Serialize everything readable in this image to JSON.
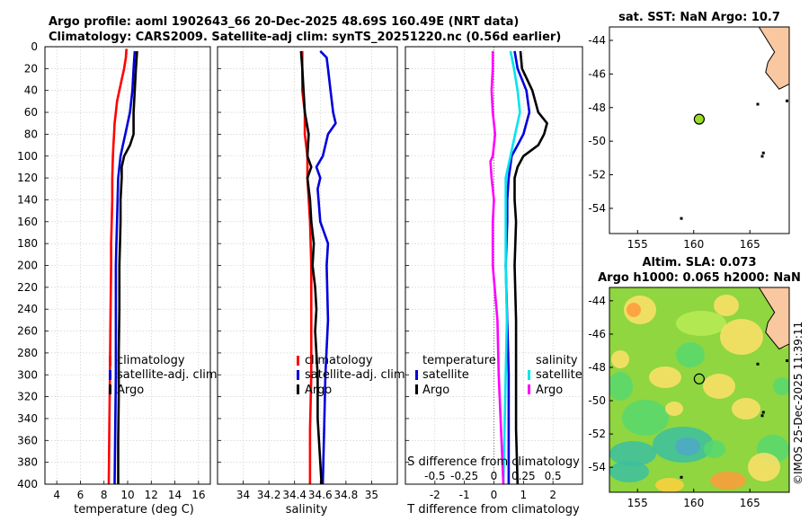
{
  "header": {
    "title_line1": "Argo profile: aoml 1902643_66 20-Dec-2025 48.69S 160.49E (NRT data)",
    "title_line2": "Climatology: CARS2009. Satellite-adj clim: synTS_20251220.nc (0.56d earlier)"
  },
  "colors": {
    "climatology": "#ff0000",
    "satellite": "#0000dd",
    "argo": "#000000",
    "sal_satellite": "#00e5ee",
    "sal_argo": "#ff00ff",
    "land": "#f9c8a0",
    "float_marker": "#99dd22"
  },
  "depth_ticks": [
    0,
    20,
    40,
    60,
    80,
    100,
    120,
    140,
    160,
    180,
    200,
    220,
    240,
    260,
    280,
    300,
    320,
    340,
    360,
    380,
    400
  ],
  "chart_data": [
    {
      "type": "line",
      "name": "temperature-profile",
      "xlabel": "temperature (deg C)",
      "ylabel": "depth",
      "xlim": [
        3,
        17
      ],
      "ylim": [
        0,
        400
      ],
      "xticks": [
        4,
        6,
        8,
        10,
        12,
        14,
        16
      ],
      "grid": true,
      "legend": [
        "climatology",
        "satellite-adj. clim",
        "Argo"
      ],
      "series": [
        {
          "name": "climatology",
          "color": "#ff0000",
          "depth": [
            2,
            10,
            20,
            30,
            40,
            50,
            60,
            70,
            80,
            90,
            100,
            120,
            140,
            160,
            180,
            200,
            250,
            300,
            350,
            400
          ],
          "values": [
            9.9,
            9.85,
            9.7,
            9.5,
            9.3,
            9.1,
            9.0,
            8.9,
            8.85,
            8.8,
            8.75,
            8.7,
            8.7,
            8.65,
            8.6,
            8.6,
            8.55,
            8.5,
            8.45,
            8.4
          ]
        },
        {
          "name": "satellite-adj. clim",
          "color": "#0000dd",
          "depth": [
            4,
            20,
            40,
            60,
            70,
            80,
            90,
            100,
            110,
            120,
            140,
            160,
            180,
            200,
            250,
            300,
            350,
            400
          ],
          "values": [
            10.6,
            10.5,
            10.4,
            10.2,
            10.0,
            9.8,
            9.6,
            9.4,
            9.3,
            9.2,
            9.15,
            9.1,
            9.05,
            9.0,
            9.0,
            9.0,
            8.95,
            8.9
          ],
          "extra_x": [
            10.2
          ]
        },
        {
          "name": "Argo",
          "color": "#000000",
          "depth": [
            4,
            20,
            40,
            60,
            80,
            90,
            100,
            110,
            120,
            140,
            160,
            180,
            200,
            240,
            280,
            320,
            360,
            400
          ],
          "values": [
            10.8,
            10.7,
            10.6,
            10.5,
            10.5,
            10.2,
            9.7,
            9.5,
            9.5,
            9.4,
            9.4,
            9.35,
            9.3,
            9.3,
            9.25,
            9.25,
            9.2,
            9.2
          ]
        }
      ]
    },
    {
      "type": "line",
      "name": "salinity-profile",
      "xlabel": "salinity",
      "ylabel": "depth",
      "xlim": [
        33.8,
        35.2
      ],
      "ylim": [
        0,
        400
      ],
      "xticks": [
        34,
        34.2,
        34.4,
        34.6,
        34.8,
        35
      ],
      "grid": true,
      "legend": [
        "climatology",
        "satellite-adj. clim",
        "Argo"
      ],
      "series": [
        {
          "name": "climatology",
          "color": "#ff0000",
          "depth": [
            4,
            40,
            60,
            80,
            100,
            120,
            160,
            200,
            250,
            300,
            350,
            400
          ],
          "values": [
            34.46,
            34.46,
            34.48,
            34.48,
            34.5,
            34.5,
            34.52,
            34.53,
            34.53,
            34.53,
            34.52,
            34.52
          ]
        },
        {
          "name": "satellite-adj. clim",
          "color": "#0000dd",
          "depth": [
            4,
            10,
            20,
            40,
            60,
            70,
            80,
            100,
            110,
            120,
            130,
            160,
            180,
            200,
            250,
            300,
            350,
            400
          ],
          "values": [
            34.6,
            34.65,
            34.66,
            34.68,
            34.7,
            34.72,
            34.66,
            34.62,
            34.57,
            34.6,
            34.58,
            34.6,
            34.66,
            34.65,
            34.66,
            34.64,
            34.63,
            34.62
          ]
        },
        {
          "name": "Argo",
          "color": "#000000",
          "depth": [
            4,
            20,
            40,
            60,
            80,
            100,
            110,
            120,
            140,
            160,
            180,
            200,
            220,
            240,
            260,
            280,
            300,
            340,
            380,
            400
          ],
          "values": [
            34.45,
            34.46,
            34.47,
            34.48,
            34.51,
            34.5,
            34.53,
            34.5,
            34.52,
            34.53,
            34.55,
            34.54,
            34.56,
            34.57,
            34.56,
            34.57,
            34.58,
            34.58,
            34.6,
            34.61
          ]
        }
      ]
    },
    {
      "type": "line",
      "name": "difference-from-climatology",
      "xlabel": "T difference from climatology",
      "top_xlabel": "S difference from climatology",
      "ylabel": "depth",
      "xlim": [
        -3,
        3
      ],
      "ylim": [
        0,
        400
      ],
      "xticks": [
        -2,
        -1,
        0,
        1,
        2
      ],
      "top_xlim": [
        -0.75,
        0.75
      ],
      "top_xticks": [
        -0.5,
        -0.25,
        0,
        0.25,
        0.5
      ],
      "grid": true,
      "legend_temperature": {
        "title": "temperature",
        "items": [
          "satellite",
          "Argo"
        ]
      },
      "legend_salinity": {
        "title": "salinity",
        "items": [
          "satellite",
          "Argo"
        ]
      },
      "series": [
        {
          "name": "temperature satellite",
          "axis": "T",
          "color": "#0000dd",
          "depth": [
            4,
            20,
            40,
            60,
            70,
            80,
            90,
            100,
            110,
            120,
            140,
            160,
            200,
            250,
            300,
            350,
            400
          ],
          "values": [
            0.7,
            0.8,
            1.1,
            1.2,
            1.1,
            1.0,
            0.8,
            0.6,
            0.55,
            0.5,
            0.45,
            0.45,
            0.4,
            0.45,
            0.5,
            0.5,
            0.5
          ]
        },
        {
          "name": "temperature Argo",
          "axis": "T",
          "color": "#000000",
          "depth": [
            4,
            20,
            40,
            60,
            70,
            80,
            90,
            100,
            110,
            120,
            140,
            160,
            200,
            250,
            300,
            350,
            400
          ],
          "values": [
            0.9,
            0.95,
            1.3,
            1.5,
            1.8,
            1.7,
            1.5,
            1.0,
            0.8,
            0.7,
            0.7,
            0.75,
            0.7,
            0.75,
            0.75,
            0.75,
            0.8
          ]
        },
        {
          "name": "salinity satellite",
          "axis": "S",
          "color": "#00e5ee",
          "depth": [
            4,
            20,
            40,
            60,
            80,
            100,
            120,
            160,
            200,
            250,
            300,
            350,
            400
          ],
          "values": [
            0.14,
            0.17,
            0.2,
            0.22,
            0.18,
            0.14,
            0.1,
            0.1,
            0.1,
            0.11,
            0.1,
            0.09,
            0.08
          ]
        },
        {
          "name": "salinity Argo",
          "axis": "S",
          "color": "#ff00ff",
          "depth": [
            4,
            20,
            40,
            60,
            80,
            100,
            105,
            120,
            140,
            160,
            200,
            250,
            300,
            350,
            400
          ],
          "values": [
            -0.01,
            -0.01,
            -0.02,
            -0.01,
            0.01,
            -0.01,
            -0.03,
            -0.02,
            0.0,
            -0.01,
            -0.01,
            0.03,
            0.04,
            0.06,
            0.08
          ]
        }
      ]
    },
    {
      "type": "map",
      "name": "sst-map",
      "title": "sat. SST: NaN Argo: 10.7",
      "lon_range": [
        152.5,
        168.5
      ],
      "lat_range": [
        -55.5,
        -43.2
      ],
      "lon_ticks": [
        155,
        160,
        165
      ],
      "lat_ticks": [
        -44,
        -46,
        -48,
        -50,
        -52,
        -54
      ],
      "float_position": {
        "lon": 160.49,
        "lat": -48.69
      }
    },
    {
      "type": "heatmap",
      "name": "sla-map",
      "title_line1": "Altim. SLA: 0.073",
      "title_line2": "Argo h1000: 0.065 h2000: NaN",
      "lon_range": [
        152.5,
        168.5
      ],
      "lat_range": [
        -55.5,
        -43.2
      ],
      "lon_ticks": [
        155,
        160,
        165
      ],
      "lat_ticks": [
        -44,
        -46,
        -48,
        -50,
        -52,
        -54
      ],
      "float_position": {
        "lon": 160.49,
        "lat": -48.69
      },
      "stamp": "©IMOS 25-Dec-2025 11:39:11"
    }
  ]
}
